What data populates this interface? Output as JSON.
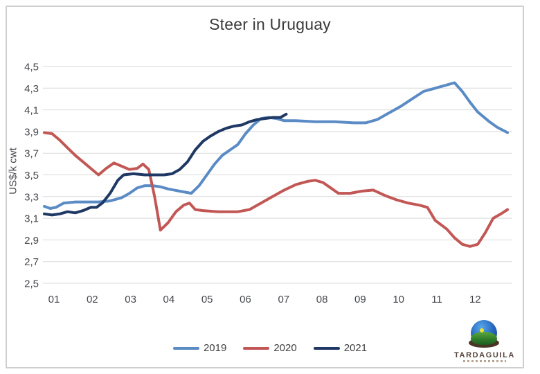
{
  "chart": {
    "title": "Steer in Uruguay",
    "y_axis_title": "US$/k cwt"
  },
  "logo": {
    "name": "TARDAGUILA"
  },
  "chart_data": {
    "type": "line",
    "title": "Steer in Uruguay",
    "xlabel": "",
    "ylabel": "US$/k cwt",
    "x_unit": "month",
    "xlim": [
      1,
      13
    ],
    "ylim": [
      2.5,
      4.5
    ],
    "grid": "horizontal-only",
    "decimal_separator": ",",
    "legend_position": "bottom",
    "colors": {
      "gridline": "#d9d9d9",
      "axis_text": "#45474e",
      "title_text": "#3a3a3a"
    },
    "y_ticks": [
      {
        "value": 4.5,
        "label": "4,5"
      },
      {
        "value": 4.3,
        "label": "4,3"
      },
      {
        "value": 4.1,
        "label": "4,1"
      },
      {
        "value": 3.9,
        "label": "3,9"
      },
      {
        "value": 3.7,
        "label": "3,7"
      },
      {
        "value": 3.5,
        "label": "3,5"
      },
      {
        "value": 3.3,
        "label": "3,3"
      },
      {
        "value": 3.1,
        "label": "3,1"
      },
      {
        "value": 2.9,
        "label": "2,9"
      },
      {
        "value": 2.7,
        "label": "2,7"
      },
      {
        "value": 2.5,
        "label": "2,5"
      }
    ],
    "x_ticks": [
      "01",
      "02",
      "03",
      "04",
      "05",
      "06",
      "07",
      "08",
      "09",
      "10",
      "11",
      "12"
    ],
    "series": [
      {
        "name": "2019",
        "color": "#5b8bc5",
        "points": [
          [
            1.0,
            3.21
          ],
          [
            1.15,
            3.19
          ],
          [
            1.3,
            3.2
          ],
          [
            1.5,
            3.24
          ],
          [
            1.8,
            3.25
          ],
          [
            2.1,
            3.25
          ],
          [
            2.4,
            3.25
          ],
          [
            2.7,
            3.26
          ],
          [
            3.0,
            3.29
          ],
          [
            3.2,
            3.33
          ],
          [
            3.4,
            3.38
          ],
          [
            3.6,
            3.4
          ],
          [
            3.8,
            3.4
          ],
          [
            4.0,
            3.39
          ],
          [
            4.2,
            3.37
          ],
          [
            4.5,
            3.35
          ],
          [
            4.8,
            3.33
          ],
          [
            5.0,
            3.4
          ],
          [
            5.2,
            3.5
          ],
          [
            5.4,
            3.6
          ],
          [
            5.6,
            3.68
          ],
          [
            5.8,
            3.73
          ],
          [
            6.0,
            3.78
          ],
          [
            6.2,
            3.88
          ],
          [
            6.4,
            3.96
          ],
          [
            6.6,
            4.02
          ],
          [
            6.8,
            4.03
          ],
          [
            7.0,
            4.02
          ],
          [
            7.2,
            4.0
          ],
          [
            7.5,
            4.0
          ],
          [
            8.0,
            3.99
          ],
          [
            8.5,
            3.99
          ],
          [
            9.0,
            3.98
          ],
          [
            9.3,
            3.98
          ],
          [
            9.6,
            4.01
          ],
          [
            9.9,
            4.07
          ],
          [
            10.2,
            4.13
          ],
          [
            10.5,
            4.2
          ],
          [
            10.8,
            4.27
          ],
          [
            11.0,
            4.29
          ],
          [
            11.3,
            4.32
          ],
          [
            11.6,
            4.35
          ],
          [
            11.8,
            4.27
          ],
          [
            12.0,
            4.17
          ],
          [
            12.2,
            4.08
          ],
          [
            12.5,
            3.99
          ],
          [
            12.7,
            3.94
          ],
          [
            12.97,
            3.89
          ]
        ]
      },
      {
        "name": "2020",
        "color": "#c25855",
        "points": [
          [
            1.0,
            3.89
          ],
          [
            1.2,
            3.88
          ],
          [
            1.4,
            3.82
          ],
          [
            1.6,
            3.75
          ],
          [
            1.8,
            3.68
          ],
          [
            2.0,
            3.62
          ],
          [
            2.2,
            3.56
          ],
          [
            2.4,
            3.5
          ],
          [
            2.6,
            3.56
          ],
          [
            2.8,
            3.61
          ],
          [
            3.0,
            3.58
          ],
          [
            3.2,
            3.55
          ],
          [
            3.4,
            3.56
          ],
          [
            3.55,
            3.6
          ],
          [
            3.7,
            3.55
          ],
          [
            3.85,
            3.3
          ],
          [
            4.0,
            2.99
          ],
          [
            4.2,
            3.06
          ],
          [
            4.4,
            3.16
          ],
          [
            4.6,
            3.22
          ],
          [
            4.75,
            3.24
          ],
          [
            4.9,
            3.18
          ],
          [
            5.1,
            3.17
          ],
          [
            5.5,
            3.16
          ],
          [
            6.0,
            3.16
          ],
          [
            6.3,
            3.18
          ],
          [
            6.6,
            3.24
          ],
          [
            6.9,
            3.3
          ],
          [
            7.2,
            3.36
          ],
          [
            7.5,
            3.41
          ],
          [
            7.8,
            3.44
          ],
          [
            8.0,
            3.45
          ],
          [
            8.2,
            3.43
          ],
          [
            8.4,
            3.38
          ],
          [
            8.6,
            3.33
          ],
          [
            8.9,
            3.33
          ],
          [
            9.2,
            3.35
          ],
          [
            9.5,
            3.36
          ],
          [
            9.8,
            3.31
          ],
          [
            10.1,
            3.27
          ],
          [
            10.4,
            3.24
          ],
          [
            10.7,
            3.22
          ],
          [
            10.9,
            3.2
          ],
          [
            11.1,
            3.08
          ],
          [
            11.4,
            3.0
          ],
          [
            11.6,
            2.92
          ],
          [
            11.8,
            2.86
          ],
          [
            12.0,
            2.84
          ],
          [
            12.2,
            2.86
          ],
          [
            12.4,
            2.97
          ],
          [
            12.6,
            3.1
          ],
          [
            12.8,
            3.14
          ],
          [
            12.97,
            3.18
          ]
        ]
      },
      {
        "name": "2021",
        "color": "#1f3864",
        "points": [
          [
            1.0,
            3.14
          ],
          [
            1.2,
            3.13
          ],
          [
            1.4,
            3.14
          ],
          [
            1.6,
            3.16
          ],
          [
            1.8,
            3.15
          ],
          [
            2.0,
            3.17
          ],
          [
            2.2,
            3.2
          ],
          [
            2.35,
            3.2
          ],
          [
            2.5,
            3.24
          ],
          [
            2.7,
            3.33
          ],
          [
            2.9,
            3.45
          ],
          [
            3.05,
            3.5
          ],
          [
            3.3,
            3.51
          ],
          [
            3.6,
            3.5
          ],
          [
            3.9,
            3.5
          ],
          [
            4.1,
            3.5
          ],
          [
            4.3,
            3.51
          ],
          [
            4.5,
            3.55
          ],
          [
            4.7,
            3.62
          ],
          [
            4.9,
            3.73
          ],
          [
            5.1,
            3.81
          ],
          [
            5.3,
            3.86
          ],
          [
            5.5,
            3.9
          ],
          [
            5.7,
            3.93
          ],
          [
            5.9,
            3.95
          ],
          [
            6.1,
            3.96
          ],
          [
            6.3,
            3.99
          ],
          [
            6.5,
            4.01
          ],
          [
            6.7,
            4.02
          ],
          [
            6.9,
            4.03
          ],
          [
            7.1,
            4.03
          ],
          [
            7.25,
            4.06
          ]
        ]
      }
    ]
  }
}
